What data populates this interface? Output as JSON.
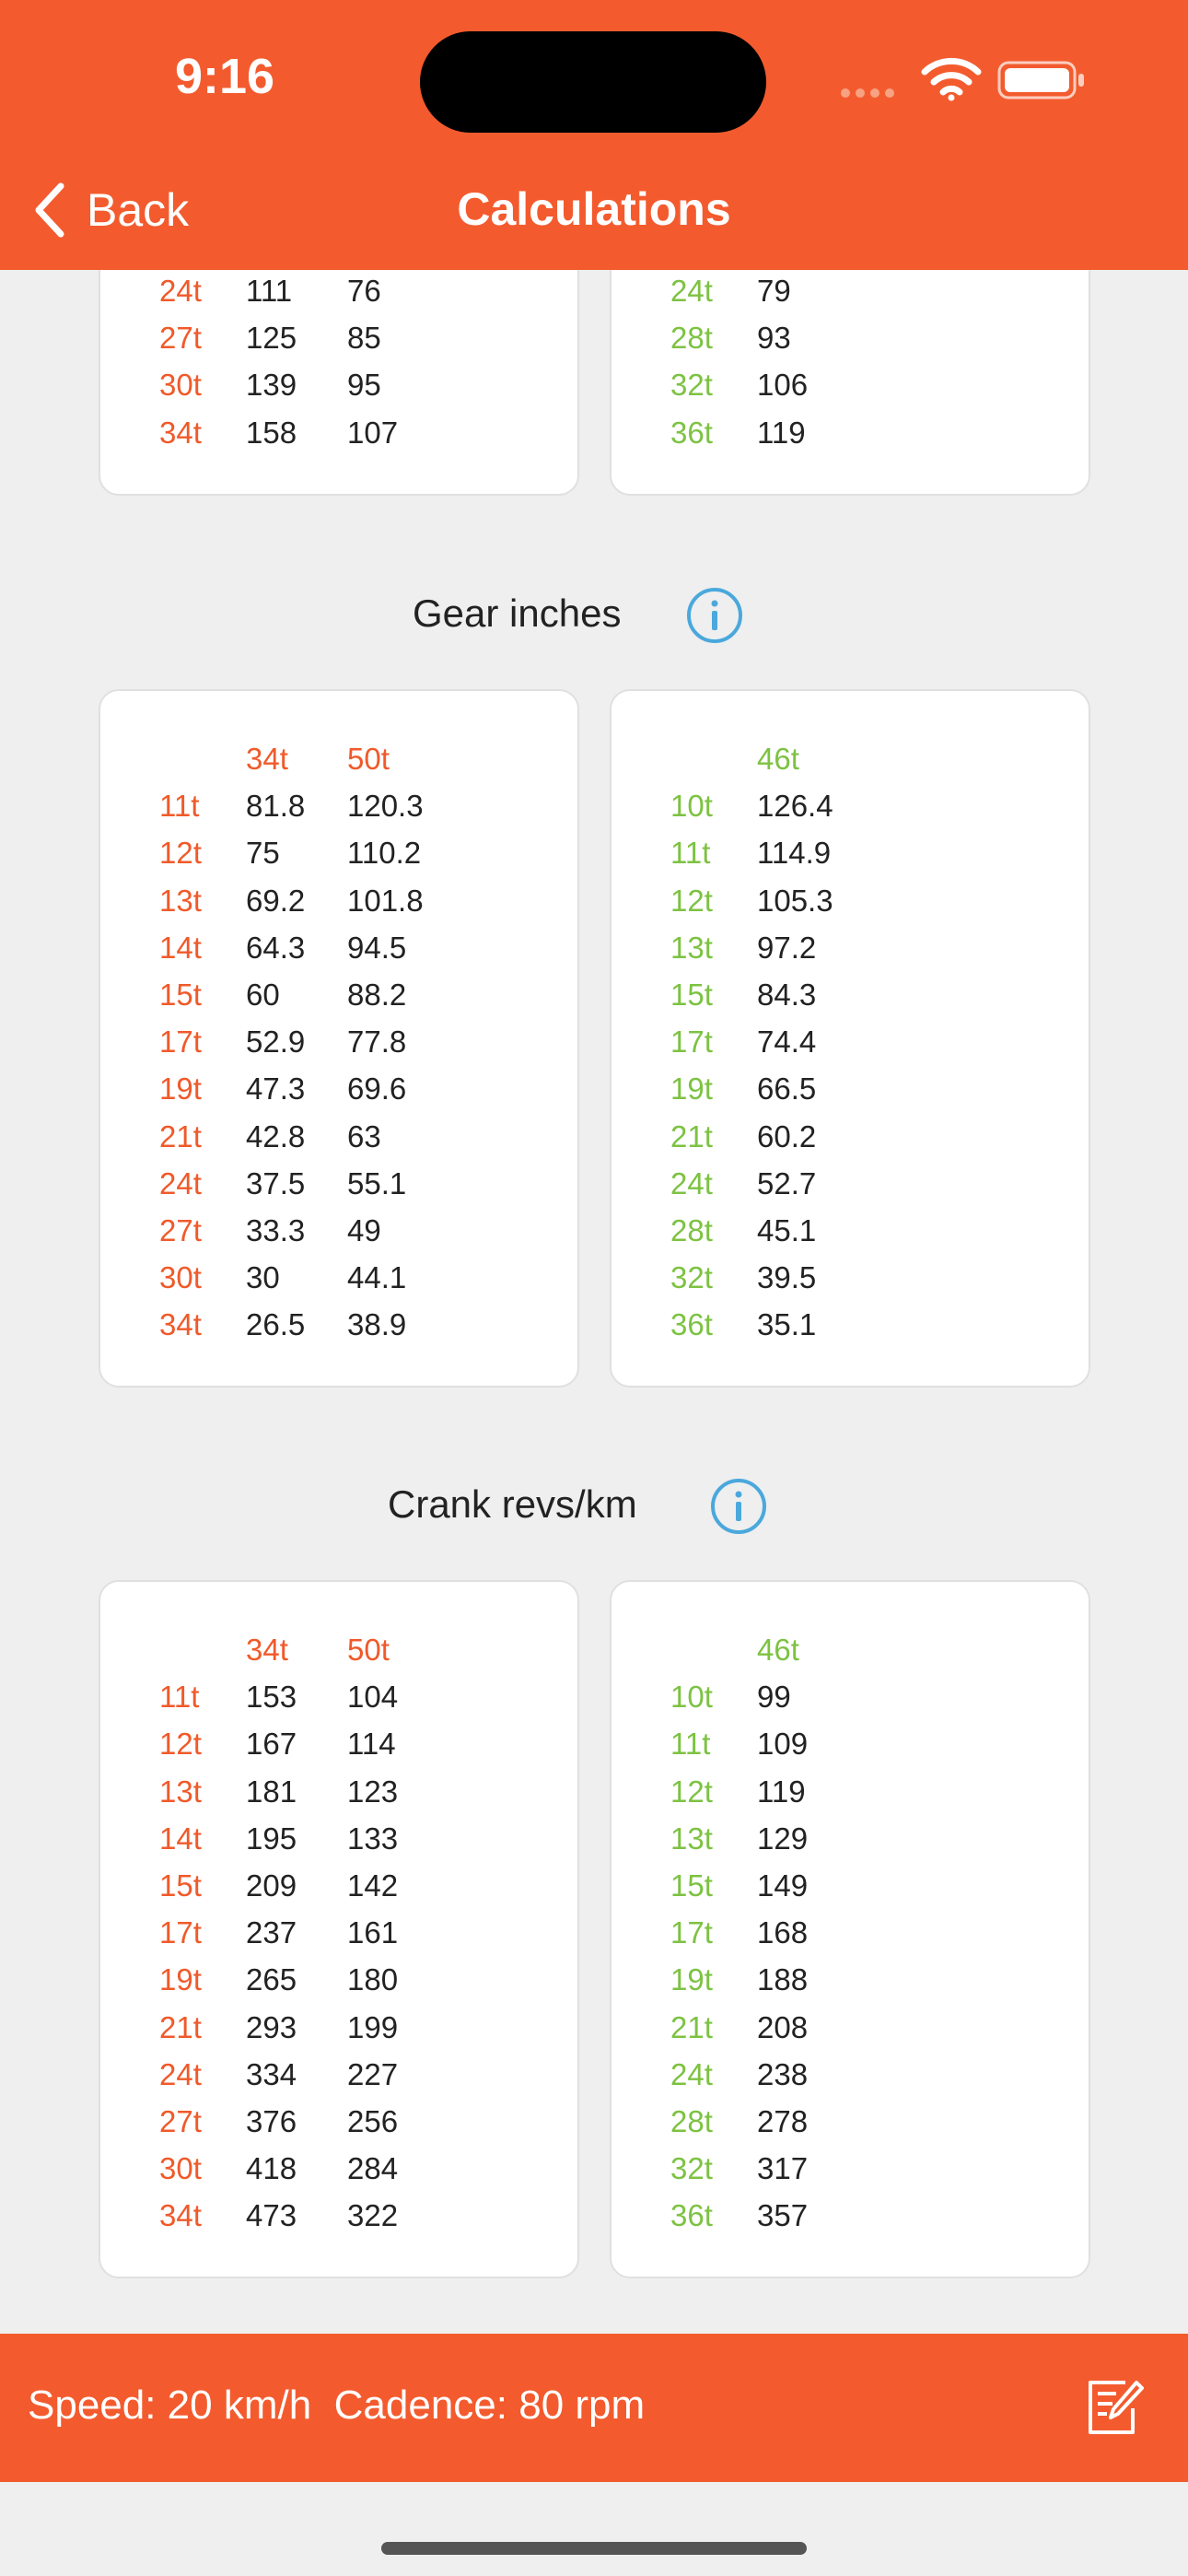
{
  "status": {
    "time": "9:16"
  },
  "nav": {
    "back_label": "Back",
    "title": "Calculations"
  },
  "top_cards": {
    "left": {
      "rows": [
        {
          "label": "24t",
          "vals": [
            "111",
            "76"
          ]
        },
        {
          "label": "27t",
          "vals": [
            "125",
            "85"
          ]
        },
        {
          "label": "30t",
          "vals": [
            "139",
            "95"
          ]
        },
        {
          "label": "34t",
          "vals": [
            "158",
            "107"
          ]
        }
      ]
    },
    "right": {
      "rows": [
        {
          "label": "24t",
          "vals": [
            "79"
          ]
        },
        {
          "label": "28t",
          "vals": [
            "93"
          ]
        },
        {
          "label": "32t",
          "vals": [
            "106"
          ]
        },
        {
          "label": "36t",
          "vals": [
            "119"
          ]
        }
      ]
    }
  },
  "gear_inches": {
    "title": "Gear inches",
    "left": {
      "headers": [
        "34t",
        "50t"
      ],
      "rows": [
        {
          "label": "11t",
          "vals": [
            "81.8",
            "120.3"
          ]
        },
        {
          "label": "12t",
          "vals": [
            "75",
            "110.2"
          ]
        },
        {
          "label": "13t",
          "vals": [
            "69.2",
            "101.8"
          ]
        },
        {
          "label": "14t",
          "vals": [
            "64.3",
            "94.5"
          ]
        },
        {
          "label": "15t",
          "vals": [
            "60",
            "88.2"
          ]
        },
        {
          "label": "17t",
          "vals": [
            "52.9",
            "77.8"
          ]
        },
        {
          "label": "19t",
          "vals": [
            "47.3",
            "69.6"
          ]
        },
        {
          "label": "21t",
          "vals": [
            "42.8",
            "63"
          ]
        },
        {
          "label": "24t",
          "vals": [
            "37.5",
            "55.1"
          ]
        },
        {
          "label": "27t",
          "vals": [
            "33.3",
            "49"
          ]
        },
        {
          "label": "30t",
          "vals": [
            "30",
            "44.1"
          ]
        },
        {
          "label": "34t",
          "vals": [
            "26.5",
            "38.9"
          ]
        }
      ]
    },
    "right": {
      "headers": [
        "46t"
      ],
      "rows": [
        {
          "label": "10t",
          "vals": [
            "126.4"
          ]
        },
        {
          "label": "11t",
          "vals": [
            "114.9"
          ]
        },
        {
          "label": "12t",
          "vals": [
            "105.3"
          ]
        },
        {
          "label": "13t",
          "vals": [
            "97.2"
          ]
        },
        {
          "label": "15t",
          "vals": [
            "84.3"
          ]
        },
        {
          "label": "17t",
          "vals": [
            "74.4"
          ]
        },
        {
          "label": "19t",
          "vals": [
            "66.5"
          ]
        },
        {
          "label": "21t",
          "vals": [
            "60.2"
          ]
        },
        {
          "label": "24t",
          "vals": [
            "52.7"
          ]
        },
        {
          "label": "28t",
          "vals": [
            "45.1"
          ]
        },
        {
          "label": "32t",
          "vals": [
            "39.5"
          ]
        },
        {
          "label": "36t",
          "vals": [
            "35.1"
          ]
        }
      ]
    }
  },
  "crank_revs": {
    "title": "Crank revs/km",
    "left": {
      "headers": [
        "34t",
        "50t"
      ],
      "rows": [
        {
          "label": "11t",
          "vals": [
            "153",
            "104"
          ]
        },
        {
          "label": "12t",
          "vals": [
            "167",
            "114"
          ]
        },
        {
          "label": "13t",
          "vals": [
            "181",
            "123"
          ]
        },
        {
          "label": "14t",
          "vals": [
            "195",
            "133"
          ]
        },
        {
          "label": "15t",
          "vals": [
            "209",
            "142"
          ]
        },
        {
          "label": "17t",
          "vals": [
            "237",
            "161"
          ]
        },
        {
          "label": "19t",
          "vals": [
            "265",
            "180"
          ]
        },
        {
          "label": "21t",
          "vals": [
            "293",
            "199"
          ]
        },
        {
          "label": "24t",
          "vals": [
            "334",
            "227"
          ]
        },
        {
          "label": "27t",
          "vals": [
            "376",
            "256"
          ]
        },
        {
          "label": "30t",
          "vals": [
            "418",
            "284"
          ]
        },
        {
          "label": "34t",
          "vals": [
            "473",
            "322"
          ]
        }
      ]
    },
    "right": {
      "headers": [
        "46t"
      ],
      "rows": [
        {
          "label": "10t",
          "vals": [
            "99"
          ]
        },
        {
          "label": "11t",
          "vals": [
            "109"
          ]
        },
        {
          "label": "12t",
          "vals": [
            "119"
          ]
        },
        {
          "label": "13t",
          "vals": [
            "129"
          ]
        },
        {
          "label": "15t",
          "vals": [
            "149"
          ]
        },
        {
          "label": "17t",
          "vals": [
            "168"
          ]
        },
        {
          "label": "19t",
          "vals": [
            "188"
          ]
        },
        {
          "label": "21t",
          "vals": [
            "208"
          ]
        },
        {
          "label": "24t",
          "vals": [
            "238"
          ]
        },
        {
          "label": "28t",
          "vals": [
            "278"
          ]
        },
        {
          "label": "32t",
          "vals": [
            "317"
          ]
        },
        {
          "label": "36t",
          "vals": [
            "357"
          ]
        }
      ]
    }
  },
  "bottom_bar": {
    "speed_cadence": "Speed: 20 km/h  Cadence: 80 rpm"
  },
  "colors": {
    "accent": "#f35b2e",
    "left_label": "#f05a2a",
    "right_label": "#7dc242",
    "info": "#4aa8dc"
  },
  "icons": {
    "back": "chevron-left-icon",
    "info": "info-icon",
    "edit": "edit-note-icon",
    "wifi": "wifi-icon",
    "battery": "battery-icon"
  }
}
